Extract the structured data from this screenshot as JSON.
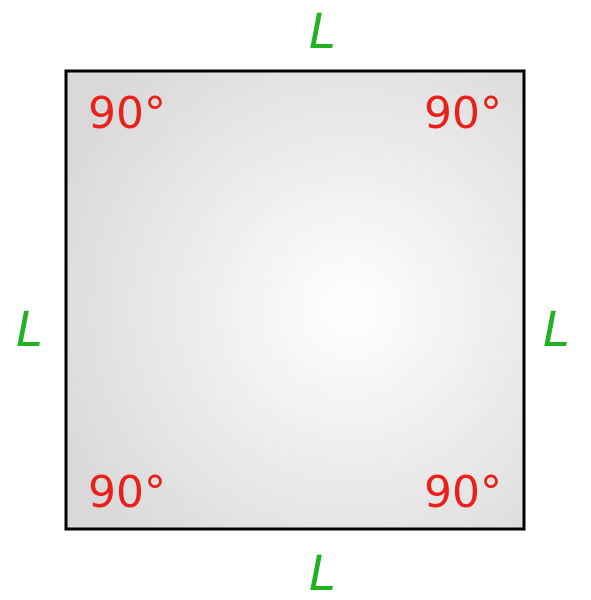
{
  "colors": {
    "outline": "#000000",
    "fill_edge": "#d9d9d9",
    "fill_center": "#ffffff",
    "angle_text": "#e8211b",
    "side_text": "#21b121",
    "tick": "#3aacd8"
  },
  "square": {
    "angles": {
      "top_left": "90°",
      "top_right": "90°",
      "bottom_left": "90°",
      "bottom_right": "90°"
    },
    "sides": {
      "top": "L",
      "left": "L",
      "right": "L",
      "bottom": "L"
    }
  }
}
